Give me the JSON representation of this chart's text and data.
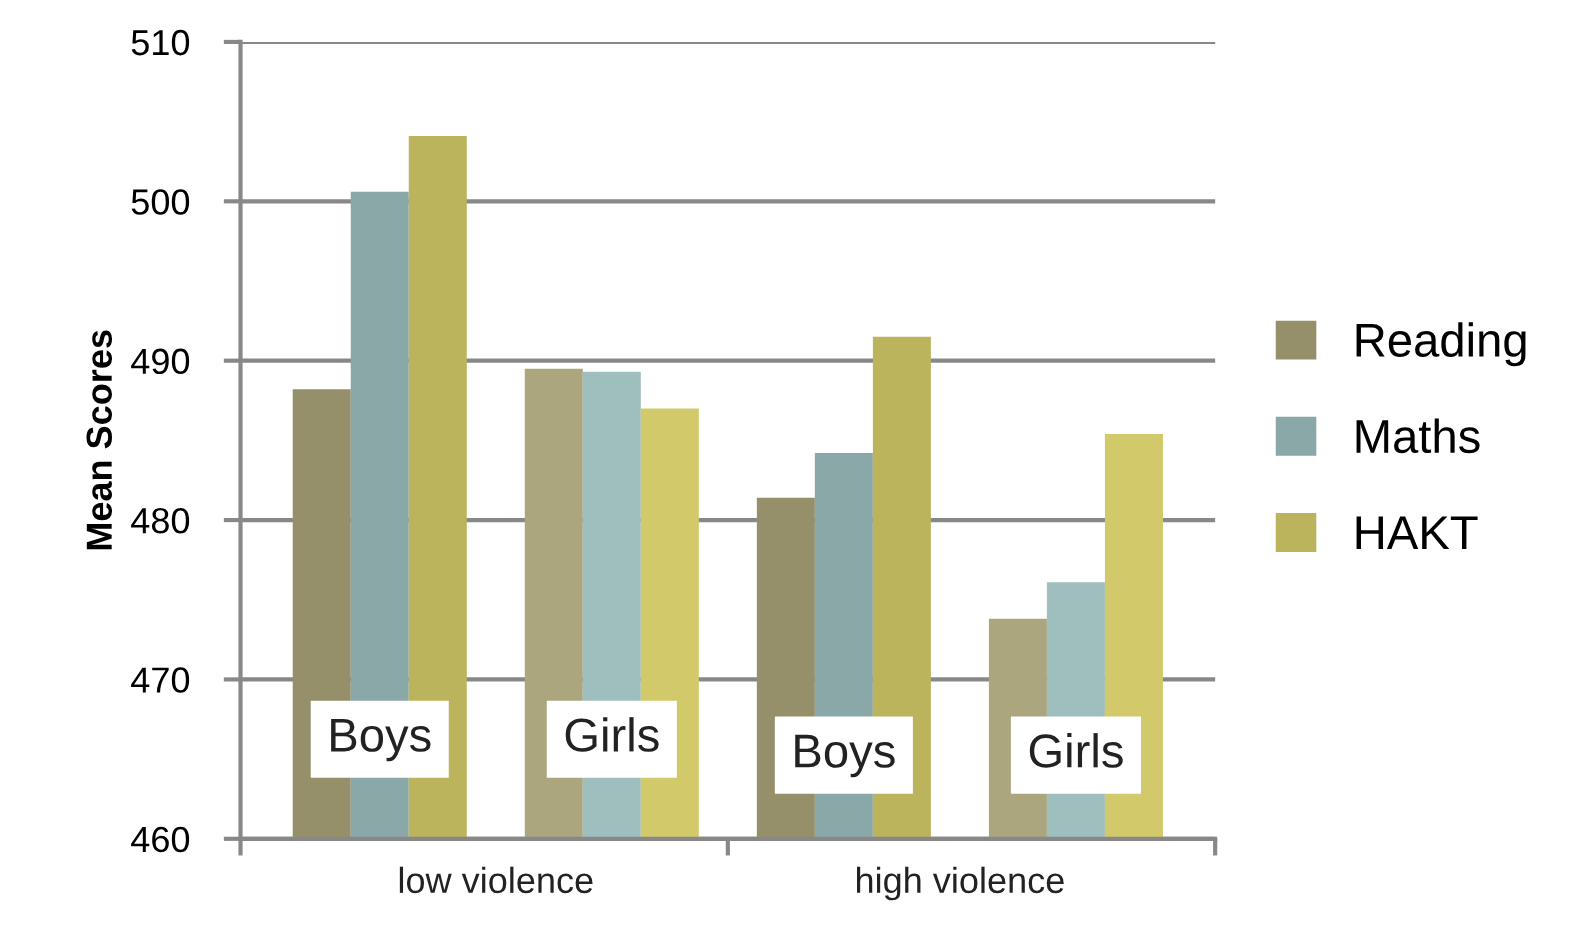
{
  "chart_data": {
    "type": "bar",
    "ylabel": "Mean Scores",
    "categories": [
      "Boys",
      "Girls",
      "Boys",
      "Girls"
    ],
    "series": [
      {
        "name": "Reading",
        "color": "#958f6a",
        "colors": [
          "#958f6a",
          "#aba67e",
          "#958f6a",
          "#aba67e"
        ],
        "values": [
          488.2,
          489.5,
          481.4,
          473.8
        ]
      },
      {
        "name": "Maths",
        "color": "#8aa8a8",
        "colors": [
          "#8aa8a8",
          "#9fbfbf",
          "#8aa8a8",
          "#9fbfbf"
        ],
        "values": [
          500.6,
          489.3,
          484.2,
          476.1
        ]
      },
      {
        "name": "HAKT",
        "color": "#bbb45c",
        "colors": [
          "#bbb45c",
          "#d2ca6a",
          "#bbb45c",
          "#d2ca6a"
        ],
        "values": [
          504.1,
          487.0,
          491.5,
          485.4
        ]
      }
    ],
    "annotations": [
      "low violence",
      "high violence"
    ],
    "ylim": [
      460,
      510
    ],
    "yticks": [
      460,
      470,
      480,
      490,
      500,
      510
    ],
    "grid": "y",
    "legend": "right"
  }
}
